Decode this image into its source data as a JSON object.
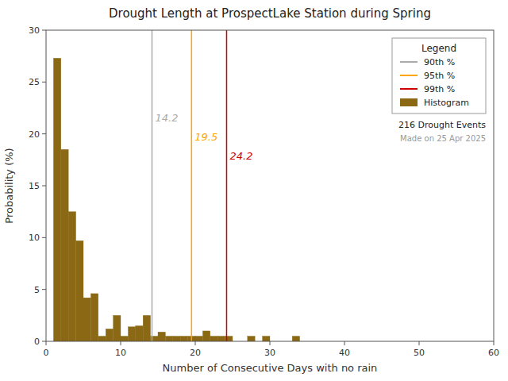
{
  "chart_data": {
    "type": "histogram",
    "title": "Drought Length at ProspectLake Station during Spring",
    "x_label": "Number of Consecutive Days with no rain",
    "y_label": "Probability (%)",
    "xlim": [
      0,
      60
    ],
    "ylim": [
      0,
      30
    ],
    "xticks": [
      0,
      10,
      20,
      30,
      40,
      50,
      60
    ],
    "yticks": [
      0,
      5,
      10,
      15,
      20,
      25,
      30
    ],
    "legend": "upper right",
    "legend_title": "Legend",
    "annotations": [
      "216 Drought Events",
      "Made on 25 Apr 2025"
    ],
    "series": [
      {
        "name": "90th %",
        "type": "vline",
        "color": "#AAAAAA",
        "data_labels": true,
        "values": [
          14.2
        ]
      },
      {
        "name": "95th %",
        "type": "vline",
        "color": "#FFA500",
        "data_labels": true,
        "values": [
          19.5
        ]
      },
      {
        "name": "99th %",
        "type": "vline",
        "color": "#CC0000",
        "data_labels": true,
        "values": [
          24.2
        ]
      },
      {
        "name": "Histogram",
        "type": "histogram",
        "color": "#8B6914",
        "bins": [
          1,
          2,
          3,
          4,
          5,
          6,
          7,
          8,
          9,
          10,
          11,
          12,
          13,
          14,
          15,
          16,
          17,
          18,
          19,
          20,
          21,
          22,
          23,
          24,
          25,
          26,
          27,
          28,
          29,
          30,
          31,
          32,
          33,
          34,
          35,
          36,
          37,
          38,
          39,
          40,
          41,
          42,
          43,
          44,
          45,
          46,
          47,
          48,
          49,
          50,
          51,
          52,
          53,
          54,
          55,
          56,
          57,
          58,
          59,
          60,
          61
        ],
        "values": [
          27.3,
          18.5,
          12.5,
          9.7,
          4.2,
          4.6,
          0.5,
          1.2,
          2.5,
          0.5,
          1.4,
          1.5,
          2.5,
          0.5,
          0.9,
          0.5,
          0.5,
          0.5,
          0.5,
          0.5,
          1.0,
          0.5,
          0.5,
          0.5,
          0.0,
          0.0,
          0.5,
          0.0,
          0.5,
          0.0,
          0.0,
          0.0,
          0.5,
          0.0,
          0.0,
          0.0,
          0.0,
          0.0,
          0.0,
          0.0,
          0.0,
          0.0,
          0.0,
          0.0,
          0.0,
          0.0,
          0.0,
          0.0,
          0.0,
          0.0,
          0.0,
          0.0,
          0.0,
          0.0,
          0.0,
          0.0,
          0.0,
          0.0,
          0.0,
          0.0
        ]
      }
    ]
  }
}
